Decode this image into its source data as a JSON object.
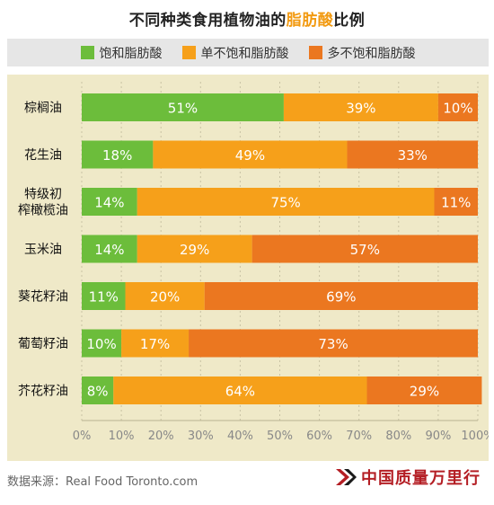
{
  "title_main": "不同种类食用植物油的",
  "title_highlight": "脂肪酸",
  "title_tail": "比例",
  "legend": [
    {
      "label": "饱和脂肪酸",
      "color": "#6cbd3b"
    },
    {
      "label": "单不饱和脂肪酸",
      "color": "#f6a01a"
    },
    {
      "label": "多不饱和脂肪酸",
      "color": "#eb7720"
    }
  ],
  "source": "数据来源：Real Food Toronto.com",
  "logo_text": "中国质量万里行",
  "chart_data": {
    "type": "bar",
    "orientation": "horizontal",
    "stacked": true,
    "categories": [
      [
        "棕榈油"
      ],
      [
        "花生油"
      ],
      [
        "特级初",
        "榨橄榄油"
      ],
      [
        "玉米油"
      ],
      [
        "葵花籽油"
      ],
      [
        "葡萄籽油"
      ],
      [
        "芥花籽油"
      ]
    ],
    "series": [
      {
        "name": "饱和脂肪酸",
        "color": "#6cbd3b",
        "values": [
          51,
          18,
          14,
          14,
          11,
          10,
          8
        ]
      },
      {
        "name": "单不饱和脂肪酸",
        "color": "#f6a01a",
        "values": [
          39,
          49,
          75,
          29,
          20,
          17,
          64
        ]
      },
      {
        "name": "多不饱和脂肪酸",
        "color": "#eb7720",
        "values": [
          10,
          33,
          11,
          57,
          69,
          73,
          29
        ]
      }
    ],
    "value_labels": [
      [
        "51%",
        "39%",
        "10%"
      ],
      [
        "18%",
        "49%",
        "33%"
      ],
      [
        "14%",
        "75%",
        "11%"
      ],
      [
        "14%",
        "29%",
        "57%"
      ],
      [
        "11%",
        "20%",
        "69%"
      ],
      [
        "10%",
        "17%",
        "73%"
      ],
      [
        "8%",
        "64%",
        "29%"
      ]
    ],
    "xticks": [
      "0%",
      "10%",
      "20%",
      "30%",
      "40%",
      "50%",
      "60%",
      "70%",
      "80%",
      "90%",
      "100%"
    ],
    "xlim": [
      0,
      100
    ],
    "grid": true,
    "legend_position": "top"
  }
}
